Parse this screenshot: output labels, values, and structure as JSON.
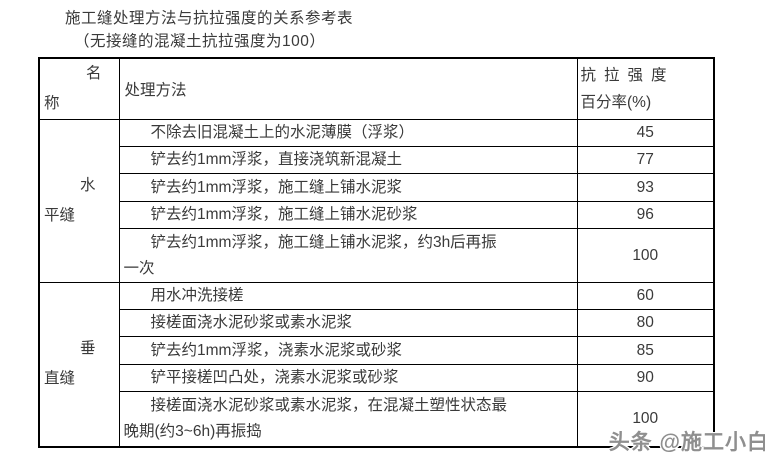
{
  "title": "施工缝处理方法与抗拉强度的关系参考表",
  "subtitle": "（无接缝的混凝土抗拉强度为100）",
  "watermark": "头条 @施工小白",
  "table": {
    "header": {
      "name_line1": "名",
      "name_line2": "称",
      "method": "处理方法",
      "strength_line1": "抗拉强度",
      "strength_line2": "百分率(%)"
    },
    "groups": [
      {
        "name_line1": "水",
        "name_line2": "平缝",
        "rows": [
          {
            "method": "不除去旧混凝土上的水泥薄膜（浮浆）",
            "value": "45"
          },
          {
            "method": "铲去约1mm浮浆，直接浇筑新混凝土",
            "value": "77"
          },
          {
            "method": "铲去约1mm浮浆，施工缝上铺水泥浆",
            "value": "93"
          },
          {
            "method": "铲去约1mm浮浆，施工缝上铺水泥砂浆",
            "value": "96"
          },
          {
            "method": "铲去约1mm浮浆，施工缝上铺水泥浆，约3h后再振\n一次",
            "value": "100"
          }
        ]
      },
      {
        "name_line1": "垂",
        "name_line2": "直缝",
        "rows": [
          {
            "method": "用水冲洗接槎",
            "value": "60"
          },
          {
            "method": "接槎面浇水泥砂浆或素水泥浆",
            "value": "80"
          },
          {
            "method": "铲去约1mm浮浆，浇素水泥浆或砂浆",
            "value": "85"
          },
          {
            "method": "铲平接槎凹凸处，浇素水泥浆或砂浆",
            "value": "90"
          },
          {
            "method": "接槎面浇水泥砂浆或素水泥浆，在混凝土塑性状态最\n晚期(约3~6h)再振捣",
            "value": "100"
          }
        ]
      }
    ]
  }
}
